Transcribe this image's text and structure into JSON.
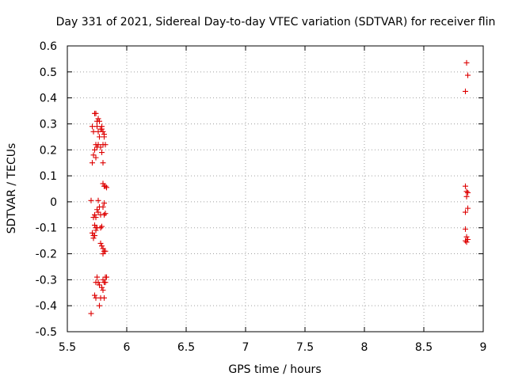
{
  "chart_data": {
    "type": "scatter",
    "title": "Day 331 of 2021, Sidereal Day-to-day VTEC variation (SDTVAR) for receiver flin",
    "xlabel": "GPS time / hours",
    "ylabel": "SDTVAR / TECUs",
    "xlim": [
      5.5,
      9
    ],
    "ylim": [
      -0.5,
      0.6
    ],
    "grid": true,
    "marker": "+",
    "color": "#dd0000",
    "x_ticks": [
      "5.5",
      "6",
      "6.5",
      "7",
      "7.5",
      "8",
      "8.5",
      "9"
    ],
    "y_ticks": [
      "-0.5",
      "-0.4",
      "-0.3",
      "-0.2",
      "-0.1",
      "0",
      "0.1",
      "0.2",
      "0.3",
      "0.4",
      "0.5",
      "0.6"
    ],
    "series": [
      {
        "name": "SDTVAR",
        "points": [
          [
            5.71,
            0.29
          ],
          [
            5.72,
            0.27
          ],
          [
            5.73,
            0.34
          ],
          [
            5.74,
            0.34
          ],
          [
            5.75,
            0.31
          ],
          [
            5.76,
            0.32
          ],
          [
            5.77,
            0.31
          ],
          [
            5.75,
            0.29
          ],
          [
            5.78,
            0.28
          ],
          [
            5.79,
            0.28
          ],
          [
            5.8,
            0.27
          ],
          [
            5.81,
            0.26
          ],
          [
            5.79,
            0.29
          ],
          [
            5.76,
            0.27
          ],
          [
            5.74,
            0.22
          ],
          [
            5.75,
            0.21
          ],
          [
            5.76,
            0.22
          ],
          [
            5.78,
            0.21
          ],
          [
            5.8,
            0.22
          ],
          [
            5.82,
            0.22
          ],
          [
            5.77,
            0.25
          ],
          [
            5.73,
            0.2
          ],
          [
            5.72,
            0.18
          ],
          [
            5.74,
            0.17
          ],
          [
            5.71,
            0.15
          ],
          [
            5.79,
            0.19
          ],
          [
            5.8,
            0.15
          ],
          [
            5.81,
            0.25
          ],
          [
            5.8,
            0.07
          ],
          [
            5.81,
            0.06
          ],
          [
            5.82,
            0.06
          ],
          [
            5.83,
            0.055
          ],
          [
            5.7,
            0.005
          ],
          [
            5.76,
            0.005
          ],
          [
            5.81,
            -0.005
          ],
          [
            5.8,
            -0.02
          ],
          [
            5.77,
            -0.02
          ],
          [
            5.75,
            -0.03
          ],
          [
            5.73,
            -0.05
          ],
          [
            5.72,
            -0.06
          ],
          [
            5.74,
            -0.06
          ],
          [
            5.76,
            -0.04
          ],
          [
            5.78,
            -0.05
          ],
          [
            5.81,
            -0.05
          ],
          [
            5.82,
            -0.045
          ],
          [
            5.73,
            -0.09
          ],
          [
            5.74,
            -0.1
          ],
          [
            5.75,
            -0.1
          ],
          [
            5.78,
            -0.1
          ],
          [
            5.79,
            -0.095
          ],
          [
            5.71,
            -0.12
          ],
          [
            5.72,
            -0.13
          ],
          [
            5.73,
            -0.13
          ],
          [
            5.74,
            -0.11
          ],
          [
            5.72,
            -0.14
          ],
          [
            5.78,
            -0.16
          ],
          [
            5.79,
            -0.17
          ],
          [
            5.8,
            -0.18
          ],
          [
            5.81,
            -0.19
          ],
          [
            5.82,
            -0.19
          ],
          [
            5.8,
            -0.2
          ],
          [
            5.75,
            -0.29
          ],
          [
            5.76,
            -0.31
          ],
          [
            5.74,
            -0.31
          ],
          [
            5.77,
            -0.32
          ],
          [
            5.8,
            -0.3
          ],
          [
            5.81,
            -0.31
          ],
          [
            5.82,
            -0.29
          ],
          [
            5.83,
            -0.29
          ],
          [
            5.82,
            -0.31
          ],
          [
            5.79,
            -0.33
          ],
          [
            5.8,
            -0.34
          ],
          [
            5.73,
            -0.36
          ],
          [
            5.74,
            -0.37
          ],
          [
            5.78,
            -0.37
          ],
          [
            5.81,
            -0.37
          ],
          [
            5.77,
            -0.4
          ],
          [
            5.7,
            -0.43
          ],
          [
            8.86,
            0.535
          ],
          [
            8.87,
            0.487
          ],
          [
            8.85,
            0.425
          ],
          [
            8.85,
            0.06
          ],
          [
            8.86,
            0.04
          ],
          [
            8.87,
            0.035
          ],
          [
            8.86,
            0.02
          ],
          [
            8.87,
            -0.025
          ],
          [
            8.85,
            -0.04
          ],
          [
            8.85,
            -0.105
          ],
          [
            8.86,
            -0.135
          ],
          [
            8.87,
            -0.145
          ],
          [
            8.86,
            -0.155
          ],
          [
            8.85,
            -0.15
          ]
        ]
      }
    ]
  }
}
